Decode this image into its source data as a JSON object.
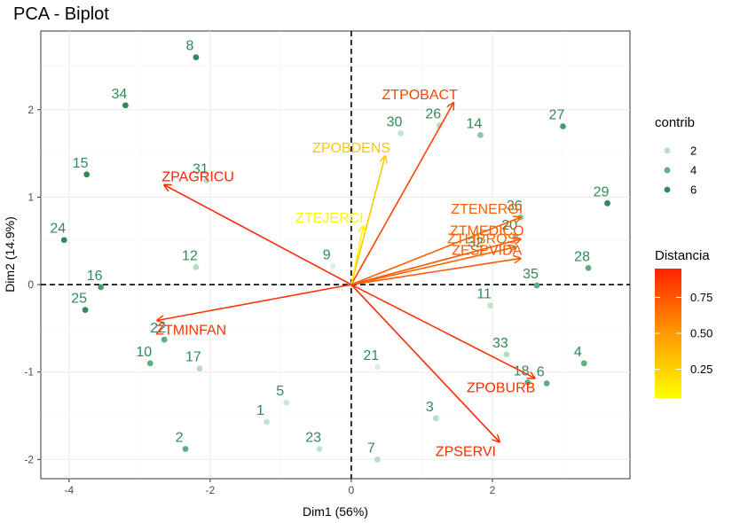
{
  "chart_data": {
    "type": "scatter",
    "title": "PCA - Biplot",
    "xlabel": "Dim1 (56%)",
    "ylabel": "Dim2 (14.9%)",
    "xlim": [
      -4.4,
      3.95
    ],
    "ylim": [
      -2.22,
      2.9
    ],
    "xticks": [
      -4,
      -2,
      0,
      2
    ],
    "yticks": [
      -2,
      -1,
      0,
      1,
      2
    ],
    "grid": true,
    "legend_contrib": {
      "title": "contrib",
      "levels": [
        {
          "label": "2",
          "color": "#b7dcc3"
        },
        {
          "label": "4",
          "color": "#5fae82"
        },
        {
          "label": "6",
          "color": "#2e8b57"
        }
      ]
    },
    "legend_distance": {
      "title": "Distancia",
      "ticks": [
        "0.75",
        "0.50",
        "0.25"
      ],
      "tick_values": [
        0.75,
        0.5,
        0.25
      ],
      "range": [
        0.05,
        0.95
      ],
      "colors": [
        "#ffff00",
        "#ff9900",
        "#ff2200"
      ]
    },
    "individuals": [
      {
        "label": "1",
        "x": -1.2,
        "y": -1.57,
        "contrib": 1.5
      },
      {
        "label": "2",
        "x": -2.35,
        "y": -1.88,
        "contrib": 4
      },
      {
        "label": "3",
        "x": 1.2,
        "y": -1.53,
        "contrib": 2
      },
      {
        "label": "4",
        "x": 3.3,
        "y": -0.9,
        "contrib": 4
      },
      {
        "label": "5",
        "x": -0.92,
        "y": -1.35,
        "contrib": 1.2
      },
      {
        "label": "6",
        "x": 2.77,
        "y": -1.13,
        "contrib": 4
      },
      {
        "label": "7",
        "x": 0.37,
        "y": -2.0,
        "contrib": 2
      },
      {
        "label": "8",
        "x": -2.2,
        "y": 2.6,
        "contrib": 6
      },
      {
        "label": "9",
        "x": -0.26,
        "y": 0.21,
        "contrib": 0.5
      },
      {
        "label": "10",
        "x": -2.85,
        "y": -0.9,
        "contrib": 4
      },
      {
        "label": "11",
        "x": 1.97,
        "y": -0.24,
        "contrib": 1.5
      },
      {
        "label": "12",
        "x": -2.2,
        "y": 0.2,
        "contrib": 2
      },
      {
        "label": "14",
        "x": 1.83,
        "y": 1.71,
        "contrib": 3
      },
      {
        "label": "15",
        "x": -3.75,
        "y": 1.26,
        "contrib": 7
      },
      {
        "label": "16",
        "x": -3.55,
        "y": -0.03,
        "contrib": 5
      },
      {
        "label": "17",
        "x": -2.15,
        "y": -0.96,
        "contrib": 2
      },
      {
        "label": "18",
        "x": 2.5,
        "y": -1.12,
        "contrib": 4
      },
      {
        "label": "20",
        "x": 2.33,
        "y": 0.55,
        "contrib": 3
      },
      {
        "label": "21",
        "x": 0.37,
        "y": -0.94,
        "contrib": 0.5
      },
      {
        "label": "22",
        "x": -2.65,
        "y": -0.63,
        "contrib": 4
      },
      {
        "label": "23",
        "x": -0.45,
        "y": -1.88,
        "contrib": 1.5
      },
      {
        "label": "24",
        "x": -4.07,
        "y": 0.51,
        "contrib": 7
      },
      {
        "label": "25",
        "x": -3.77,
        "y": -0.29,
        "contrib": 6
      },
      {
        "label": "26",
        "x": 1.25,
        "y": 1.82,
        "contrib": 2
      },
      {
        "label": "27",
        "x": 3.0,
        "y": 1.81,
        "contrib": 5
      },
      {
        "label": "28",
        "x": 3.36,
        "y": 0.19,
        "contrib": 4
      },
      {
        "label": "29",
        "x": 3.63,
        "y": 0.93,
        "contrib": 6
      },
      {
        "label": "30",
        "x": 0.7,
        "y": 1.73,
        "contrib": 1.5
      },
      {
        "label": "31",
        "x": -2.05,
        "y": 1.19,
        "contrib": 2
      },
      {
        "label": "32",
        "x": 1.85,
        "y": 0.35,
        "contrib": 1.5
      },
      {
        "label": "33",
        "x": 2.2,
        "y": -0.8,
        "contrib": 2
      },
      {
        "label": "34",
        "x": -3.2,
        "y": 2.05,
        "contrib": 6
      },
      {
        "label": "35",
        "x": 2.63,
        "y": -0.01,
        "contrib": 4
      },
      {
        "label": "36",
        "x": 2.4,
        "y": 0.77,
        "contrib": 3
      }
    ],
    "variables": [
      {
        "label": "ZTPOBACT",
        "x": 1.45,
        "y": 2.08,
        "distance": 0.82
      },
      {
        "label": "ZPOBDENS",
        "x": 0.48,
        "y": 1.47,
        "distance": 0.3
      },
      {
        "label": "ZPAGRICU",
        "x": -2.65,
        "y": 1.14,
        "distance": 0.93
      },
      {
        "label": "ZTENERGI",
        "x": 2.4,
        "y": 0.77,
        "distance": 0.72
      },
      {
        "label": "ZTMEDICO",
        "x": 2.4,
        "y": 0.52,
        "distance": 0.75
      },
      {
        "label": "ZTLIBROS",
        "x": 2.33,
        "y": 0.43,
        "distance": 0.7
      },
      {
        "label": "ZESPVIDA",
        "x": 2.4,
        "y": 0.3,
        "distance": 0.75
      },
      {
        "label": "ZTEJERCI",
        "x": 0.17,
        "y": 0.67,
        "distance": 0.08
      },
      {
        "label": "ZTMINFAN",
        "x": -2.75,
        "y": -0.41,
        "distance": 0.88
      },
      {
        "label": "ZPOBURB",
        "x": 2.6,
        "y": -1.07,
        "distance": 0.9
      },
      {
        "label": "ZPSERVI",
        "x": 2.1,
        "y": -1.8,
        "distance": 0.92
      }
    ]
  }
}
